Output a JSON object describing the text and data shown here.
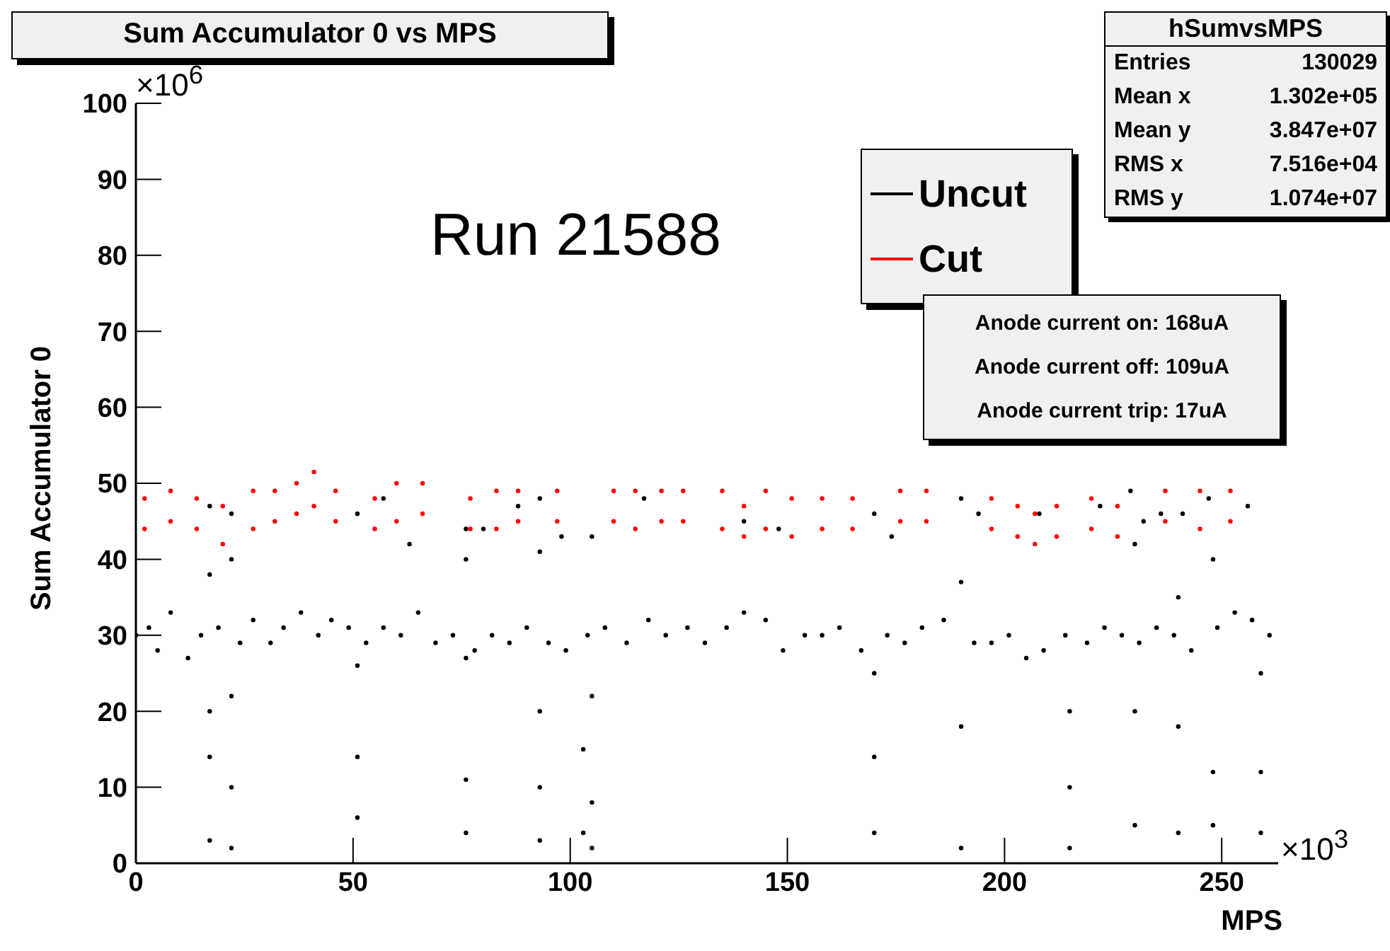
{
  "chart_data": {
    "type": "scatter",
    "title": "Sum Accumulator 0 vs MPS",
    "xlabel": "MPS",
    "ylabel": "Sum Accumulator 0",
    "annotations": [
      "Run 21588",
      "×10$^{6}$",
      "×10$^{3}$",
      "hSumvsMPS",
      "Entries 130029",
      "Mean x 1.302e+05",
      "Mean y 3.847e+07",
      "RMS x 7.516e+04",
      "RMS y 1.074e+07",
      "Anode current on: 168uA",
      "Anode current off: 109uA",
      "Anode current trip: 17uA"
    ],
    "xlim": [
      0,
      263
    ],
    "xticks": [
      0,
      50,
      100,
      150,
      200,
      250
    ],
    "ylim": [
      0,
      100
    ],
    "yticks": [
      0,
      10,
      20,
      30,
      40,
      50,
      60,
      70,
      80,
      90,
      100
    ],
    "grid": false,
    "legend": "top right",
    "marker": "circle",
    "series": [
      {
        "name": "Uncut",
        "color": "#000000",
        "x": [
          0,
          3,
          5,
          8,
          12,
          15,
          19,
          24,
          27,
          31,
          34,
          38,
          42,
          45,
          49,
          53,
          57,
          61,
          65,
          69,
          73,
          78,
          82,
          86,
          90,
          95,
          99,
          104,
          108,
          113,
          118,
          122,
          127,
          131,
          136,
          140,
          145,
          149,
          154,
          158,
          162,
          167,
          173,
          177,
          181,
          186,
          193,
          197,
          201,
          205,
          209,
          214,
          219,
          223,
          227,
          231,
          235,
          239,
          243,
          249,
          253,
          257,
          261,
          17,
          22,
          51,
          57,
          63,
          76,
          80,
          88,
          93,
          98,
          105,
          117,
          140,
          148,
          170,
          174,
          190,
          194,
          208,
          222,
          229,
          232,
          236,
          241,
          247,
          256,
          17,
          17,
          17,
          17,
          22,
          22,
          22,
          22,
          51,
          51,
          51,
          76,
          76,
          76,
          76,
          93,
          93,
          93,
          93,
          103,
          103,
          105,
          105,
          105,
          170,
          170,
          170,
          190,
          190,
          190,
          215,
          215,
          215,
          230,
          230,
          230,
          240,
          240,
          240,
          248,
          248,
          248,
          259,
          259,
          259
        ],
        "values": [
          30,
          31,
          28,
          33,
          27,
          30,
          31,
          29,
          32,
          29,
          31,
          33,
          30,
          32,
          31,
          29,
          31,
          30,
          33,
          29,
          30,
          28,
          30,
          29,
          31,
          29,
          28,
          30,
          31,
          29,
          32,
          30,
          31,
          29,
          31,
          33,
          32,
          28,
          30,
          30,
          31,
          28,
          30,
          29,
          31,
          32,
          29,
          29,
          30,
          27,
          28,
          30,
          29,
          31,
          30,
          29,
          31,
          30,
          28,
          31,
          33,
          32,
          30,
          47,
          46,
          46,
          48,
          42,
          44,
          44,
          47,
          48,
          43,
          43,
          48,
          45,
          44,
          46,
          43,
          48,
          46,
          46,
          47,
          49,
          45,
          46,
          46,
          48,
          47,
          38,
          20,
          14,
          3,
          40,
          22,
          10,
          2,
          26,
          14,
          6,
          40,
          27,
          11,
          4,
          41,
          20,
          10,
          3,
          15,
          4,
          22,
          8,
          2,
          25,
          14,
          4,
          37,
          18,
          2,
          20,
          10,
          2,
          42,
          20,
          5,
          35,
          18,
          4,
          40,
          12,
          5,
          25,
          12,
          4
        ]
      },
      {
        "name": "Cut",
        "color": "#ff0000",
        "x": [
          2,
          2,
          8,
          8,
          14,
          14,
          20,
          20,
          27,
          27,
          32,
          32,
          37,
          37,
          41,
          41,
          46,
          46,
          55,
          55,
          60,
          60,
          66,
          66,
          77,
          77,
          83,
          83,
          88,
          88,
          97,
          97,
          110,
          110,
          115,
          115,
          121,
          121,
          126,
          126,
          135,
          135,
          140,
          140,
          145,
          145,
          151,
          151,
          158,
          158,
          165,
          165,
          176,
          176,
          182,
          182,
          197,
          197,
          203,
          203,
          207,
          207,
          212,
          212,
          220,
          220,
          226,
          226,
          237,
          237,
          245,
          245,
          252,
          252
        ],
        "values": [
          44,
          48,
          45,
          49,
          44,
          48,
          42,
          47,
          44,
          49,
          45,
          49,
          46,
          50,
          47,
          51.5,
          45,
          49,
          44,
          48,
          45,
          50,
          46,
          50,
          44,
          48,
          44,
          49,
          45,
          49,
          45,
          49,
          45,
          49,
          44,
          49,
          45,
          49,
          45,
          49,
          44,
          49,
          43,
          47,
          44,
          49,
          43,
          48,
          44,
          48,
          44,
          48,
          45,
          49,
          45,
          49,
          44,
          48,
          43,
          47,
          42,
          46,
          43,
          47,
          44,
          48,
          43,
          47,
          45,
          49,
          44,
          49,
          45,
          49
        ]
      }
    ]
  }
}
